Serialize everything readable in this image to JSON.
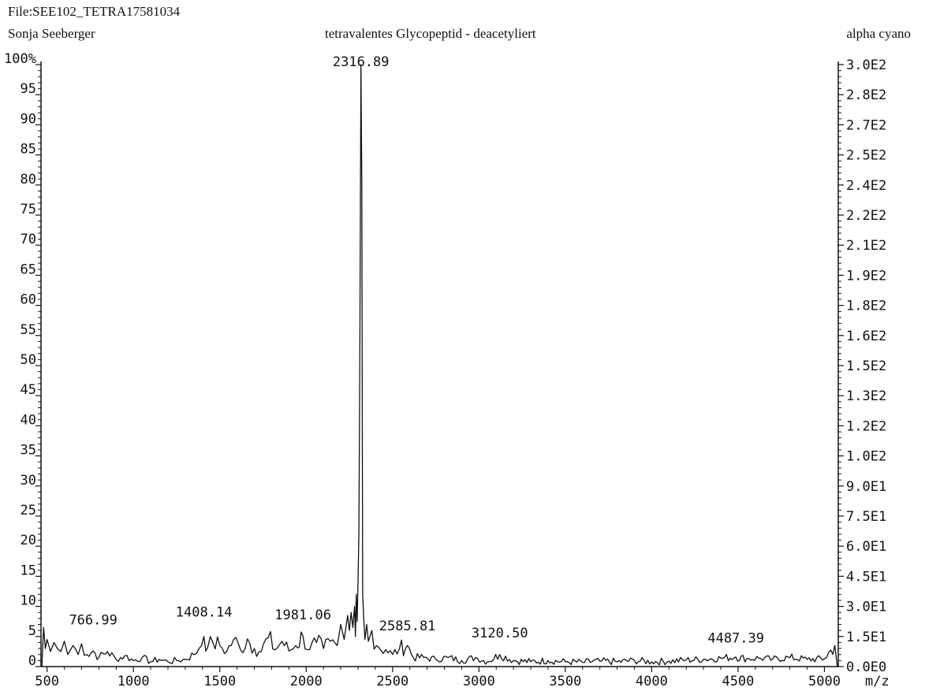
{
  "header": {
    "file": "File:SEE102_TETRA17581034",
    "operator": "Sonja Seeberger",
    "title": "tetravalentes Glycopeptid - deacetyliert",
    "matrix": "alpha cyano"
  },
  "chart_data": {
    "type": "line",
    "title": "tetravalentes Glycopeptid - deacetyliert",
    "xlabel": "m/z",
    "ylabel": "%",
    "xlim": [
      465,
      5080
    ],
    "ylim": [
      0,
      100
    ],
    "x_ticks": [
      500,
      1000,
      1500,
      2000,
      2500,
      3000,
      3500,
      4000,
      4500,
      5000
    ],
    "x_tick_labels": [
      "500",
      "1000",
      "1500",
      "2000",
      "2500",
      "3000",
      "3500",
      "4000",
      "4500",
      "5000"
    ],
    "y_ticks": [
      0,
      5,
      10,
      15,
      20,
      25,
      30,
      35,
      40,
      45,
      50,
      55,
      60,
      65,
      70,
      75,
      80,
      85,
      90,
      95,
      100
    ],
    "y_tick_labels": [
      "0",
      "5",
      "10",
      "15",
      "20",
      "25",
      "30",
      "35",
      "40",
      "45",
      "50",
      "55",
      "60",
      "65",
      "70",
      "75",
      "80",
      "85",
      "90",
      "95",
      "100%"
    ],
    "y2_tick_labels": [
      "0.0E0",
      "1.5E1",
      "3.0E1",
      "4.5E1",
      "6.0E1",
      "7.5E1",
      "9.0E1",
      "1.0E2",
      "1.2E2",
      "1.3E2",
      "1.5E2",
      "1.6E2",
      "1.8E2",
      "1.9E2",
      "2.1E2",
      "2.2E2",
      "2.4E2",
      "2.5E2",
      "2.7E2",
      "2.8E2",
      "3.0E2"
    ],
    "grid": false,
    "peak_labels": [
      {
        "x": 766.99,
        "y": 6.5,
        "text": "766.99"
      },
      {
        "x": 1408.14,
        "y": 7.8,
        "text": "1408.14"
      },
      {
        "x": 1981.06,
        "y": 7.3,
        "text": "1981.06"
      },
      {
        "x": 2316.89,
        "y": 100,
        "text": "2316.89"
      },
      {
        "x": 2585.81,
        "y": 5.5,
        "text": "2585.81"
      },
      {
        "x": 3120.5,
        "y": 4.3,
        "text": "3120.50"
      },
      {
        "x": 4487.39,
        "y": 3.5,
        "text": "4487.39"
      }
    ],
    "series": [
      {
        "x": [
          470,
          480,
          490,
          500,
          520,
          540,
          560,
          580,
          600,
          620,
          650,
          680,
          700,
          730,
          767,
          800,
          850,
          900,
          950,
          1000,
          1050,
          1100,
          1150,
          1200,
          1250,
          1300,
          1350,
          1380,
          1408,
          1430,
          1460,
          1500,
          1540,
          1580,
          1620,
          1660,
          1700,
          1740,
          1780,
          1820,
          1860,
          1900,
          1940,
          1981,
          2020,
          2060,
          2100,
          2140,
          2180,
          2200,
          2220,
          2240,
          2250,
          2260,
          2270,
          2280,
          2285,
          2290,
          2295,
          2300,
          2305,
          2310,
          2317,
          2322,
          2327,
          2333,
          2340,
          2350,
          2360,
          2380,
          2420,
          2460,
          2500,
          2540,
          2586,
          2620,
          2680,
          2750,
          2820,
          2900,
          2980,
          3050,
          3120,
          3200,
          3300,
          3400,
          3500,
          3600,
          3700,
          3800,
          3900,
          4000,
          4100,
          4200,
          4300,
          4400,
          4487,
          4550,
          4620,
          4700,
          4800,
          4900,
          5000,
          5060,
          5075
        ],
        "y": [
          0,
          6.5,
          3.0,
          4.5,
          2.5,
          4.0,
          3.0,
          2.5,
          4.2,
          2.0,
          3.5,
          2.0,
          3.8,
          2.0,
          2.6,
          1.5,
          2.5,
          1.2,
          1.8,
          1.0,
          1.5,
          0.8,
          1.2,
          0.8,
          1.0,
          1.2,
          2.0,
          3.0,
          5.0,
          3.2,
          4.0,
          3.5,
          2.5,
          4.5,
          2.8,
          4.6,
          3.0,
          2.5,
          4.8,
          2.8,
          4.2,
          2.6,
          3.5,
          5.1,
          2.8,
          4.0,
          3.0,
          4.2,
          3.5,
          7.0,
          4.5,
          8.5,
          6.0,
          9.0,
          6.5,
          10.0,
          5.0,
          12.0,
          7.5,
          14.0,
          22.0,
          48.0,
          100.0,
          80.0,
          12.0,
          8.0,
          4.5,
          7.0,
          4.2,
          6.0,
          3.2,
          2.8,
          2.0,
          3.0,
          3.5,
          1.5,
          1.5,
          1.2,
          1.5,
          1.0,
          1.5,
          0.8,
          2.0,
          1.0,
          0.8,
          1.0,
          0.8,
          0.7,
          0.9,
          0.8,
          1.0,
          0.8,
          0.9,
          1.1,
          1.2,
          1.4,
          1.6,
          1.3,
          1.4,
          1.2,
          1.5,
          1.2,
          1.3,
          3.5,
          0
        ]
      }
    ]
  }
}
